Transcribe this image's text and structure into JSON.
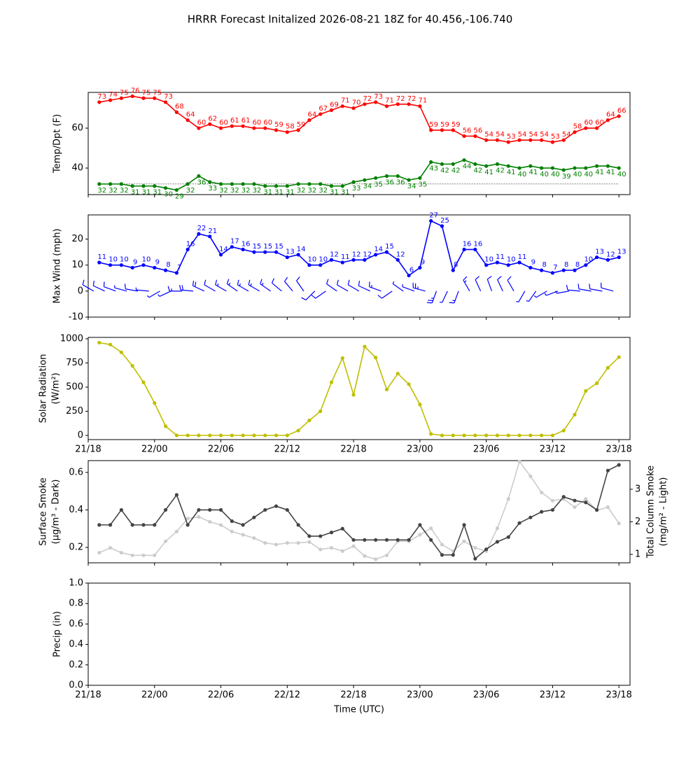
{
  "title": "HRRR Forecast Initalized 2026-08-21 18Z for 40.456,-106.740",
  "chart_data": [
    {
      "type": "line",
      "ylabel": [
        "Temp/Dpt (F)"
      ],
      "x": [
        1,
        2,
        3,
        4,
        5,
        6,
        7,
        8,
        9,
        10,
        11,
        12,
        13,
        14,
        15,
        16,
        17,
        18,
        19,
        20,
        21,
        22,
        23,
        24,
        25,
        26,
        27,
        28,
        29,
        30,
        31,
        32,
        33,
        34,
        35,
        36,
        37,
        38,
        39,
        40,
        41,
        42,
        43,
        44,
        45,
        46,
        47,
        48
      ],
      "xlim": [
        0,
        49
      ],
      "xticks": [
        {
          "value": 0,
          "label": "21/18"
        },
        {
          "value": 6,
          "label": "22/00"
        },
        {
          "value": 12,
          "label": "22/06"
        },
        {
          "value": 18,
          "label": "22/12"
        },
        {
          "value": 24,
          "label": "22/18"
        },
        {
          "value": 30,
          "label": "23/00"
        },
        {
          "value": 36,
          "label": "23/06"
        },
        {
          "value": 42,
          "label": "23/12"
        },
        {
          "value": 48,
          "label": "23/18"
        }
      ],
      "xtick_labels": false,
      "ylim": [
        26.7,
        77.9
      ],
      "yticks": [
        40,
        60
      ],
      "reference_line": 32,
      "series": [
        {
          "name": "Temperature",
          "color": "#ff0000",
          "data_labels": "above",
          "values": [
            73,
            74,
            75,
            76,
            75,
            75,
            73,
            68,
            64,
            60,
            62,
            60,
            61,
            61,
            60,
            60,
            59,
            58,
            59,
            64,
            67,
            69,
            71,
            70,
            72,
            73,
            71,
            72,
            72,
            71,
            59,
            59,
            59,
            56,
            56,
            54,
            54,
            53,
            54,
            54,
            54,
            53,
            54,
            58,
            60,
            60,
            64,
            66
          ]
        },
        {
          "name": "Dew Point",
          "color": "#008000",
          "data_labels": "below",
          "values": [
            32,
            32,
            32,
            31,
            31,
            31,
            30,
            29,
            32,
            36,
            33,
            32,
            32,
            32,
            32,
            31,
            31,
            31,
            32,
            32,
            32,
            31,
            31,
            33,
            34,
            35,
            36,
            36,
            34,
            35,
            43,
            42,
            42,
            44,
            42,
            41,
            42,
            41,
            40,
            41,
            40,
            40,
            39,
            40,
            40,
            41,
            41,
            40
          ]
        }
      ]
    },
    {
      "type": "line",
      "ylabel": [
        "Max Wind (mph)"
      ],
      "x": [
        1,
        2,
        3,
        4,
        5,
        6,
        7,
        8,
        9,
        10,
        11,
        12,
        13,
        14,
        15,
        16,
        17,
        18,
        19,
        20,
        21,
        22,
        23,
        24,
        25,
        26,
        27,
        28,
        29,
        30,
        31,
        32,
        33,
        34,
        35,
        36,
        37,
        38,
        39,
        40,
        41,
        42,
        43,
        44,
        45,
        46,
        47,
        48
      ],
      "xlim": [
        0,
        49
      ],
      "xticks": [
        {
          "value": 0,
          "label": "21/18"
        },
        {
          "value": 6,
          "label": "22/00"
        },
        {
          "value": 12,
          "label": "22/06"
        },
        {
          "value": 18,
          "label": "22/12"
        },
        {
          "value": 24,
          "label": "22/18"
        },
        {
          "value": 30,
          "label": "23/00"
        },
        {
          "value": 36,
          "label": "23/06"
        },
        {
          "value": 42,
          "label": "23/12"
        },
        {
          "value": 48,
          "label": "23/18"
        }
      ],
      "xtick_labels": false,
      "ylim": [
        -10,
        29.3
      ],
      "yticks": [
        -10,
        0,
        10,
        20
      ],
      "series": [
        {
          "name": "Max Wind",
          "color": "#0000ff",
          "data_labels": "above",
          "values": [
            11,
            10,
            10,
            9,
            10,
            9,
            8,
            7,
            16,
            22,
            21,
            14,
            17,
            16,
            15,
            15,
            15,
            13,
            14,
            10,
            10,
            12,
            11,
            12,
            12,
            14,
            15,
            12,
            6,
            9,
            27,
            25,
            8,
            16,
            16,
            10,
            11,
            10,
            11,
            9,
            8,
            7,
            8,
            8,
            10,
            13,
            12,
            13
          ]
        }
      ],
      "wind_dir": [
        300,
        295,
        290,
        285,
        280,
        275,
        240,
        245,
        270,
        275,
        295,
        300,
        300,
        305,
        300,
        300,
        305,
        310,
        320,
        325,
        225,
        235,
        305,
        300,
        300,
        295,
        290,
        235,
        305,
        290,
        285,
        200,
        205,
        200,
        330,
        335,
        340,
        335,
        330,
        210,
        215,
        240,
        250,
        260,
        275,
        280,
        280,
        285
      ]
    },
    {
      "type": "line",
      "ylabel": [
        "Solar Radiation",
        "(W/m²)"
      ],
      "x": [
        1,
        2,
        3,
        4,
        5,
        6,
        7,
        8,
        9,
        10,
        11,
        12,
        13,
        14,
        15,
        16,
        17,
        18,
        19,
        20,
        21,
        22,
        23,
        24,
        25,
        26,
        27,
        28,
        29,
        30,
        31,
        32,
        33,
        34,
        35,
        36,
        37,
        38,
        39,
        40,
        41,
        42,
        43,
        44,
        45,
        46,
        47,
        48
      ],
      "xlim": [
        0,
        49
      ],
      "xticks": [
        {
          "value": 0,
          "label": "21/18"
        },
        {
          "value": 6,
          "label": "22/00"
        },
        {
          "value": 12,
          "label": "22/06"
        },
        {
          "value": 18,
          "label": "22/12"
        },
        {
          "value": 24,
          "label": "22/18"
        },
        {
          "value": 30,
          "label": "23/00"
        },
        {
          "value": 36,
          "label": "23/06"
        },
        {
          "value": 42,
          "label": "23/12"
        },
        {
          "value": 48,
          "label": "23/18"
        }
      ],
      "xtick_labels": true,
      "ylim": [
        -43.5,
        1014.5
      ],
      "yticks": [
        0,
        250,
        500,
        750,
        1000
      ],
      "series": [
        {
          "name": "Solar Radiation",
          "color": "#bfbf00",
          "values": [
            960,
            940,
            860,
            720,
            550,
            335,
            95,
            0,
            0,
            0,
            0,
            0,
            0,
            0,
            0,
            0,
            0,
            0,
            50,
            155,
            250,
            550,
            800,
            420,
            920,
            805,
            475,
            640,
            530,
            320,
            15,
            0,
            0,
            0,
            0,
            0,
            0,
            0,
            0,
            0,
            0,
            0,
            50,
            215,
            460,
            540,
            700,
            810
          ]
        }
      ]
    },
    {
      "type": "line",
      "ylabel": [
        "Surface Smoke",
        "(μg/m³ - Dark)"
      ],
      "y2label": [
        "Total Column Smoke",
        "(mg/m² - Light)"
      ],
      "x": [
        1,
        2,
        3,
        4,
        5,
        6,
        7,
        8,
        9,
        10,
        11,
        12,
        13,
        14,
        15,
        16,
        17,
        18,
        19,
        20,
        21,
        22,
        23,
        24,
        25,
        26,
        27,
        28,
        29,
        30,
        31,
        32,
        33,
        34,
        35,
        36,
        37,
        38,
        39,
        40,
        41,
        42,
        43,
        44,
        45,
        46,
        47,
        48
      ],
      "xlim": [
        0,
        49
      ],
      "xticks": [
        {
          "value": 0,
          "label": "21/18"
        },
        {
          "value": 6,
          "label": "22/00"
        },
        {
          "value": 12,
          "label": "22/06"
        },
        {
          "value": 18,
          "label": "22/12"
        },
        {
          "value": 24,
          "label": "22/18"
        },
        {
          "value": 30,
          "label": "23/00"
        },
        {
          "value": 36,
          "label": "23/06"
        },
        {
          "value": 42,
          "label": "23/12"
        },
        {
          "value": 48,
          "label": "23/18"
        }
      ],
      "xtick_labels": false,
      "ylim": [
        0.118,
        0.663
      ],
      "yticks": [
        0.2,
        0.4,
        0.6
      ],
      "y2lim": [
        0.74,
        3.88
      ],
      "y2ticks": [
        1,
        2,
        3
      ],
      "series": [
        {
          "name": "Total Column Smoke",
          "color": "#cccccc",
          "axis": "y2",
          "values": [
            1.05,
            1.2,
            1.05,
            0.97,
            0.97,
            0.97,
            1.4,
            1.7,
            2.1,
            2.15,
            2.0,
            1.9,
            1.7,
            1.6,
            1.5,
            1.35,
            1.3,
            1.35,
            1.35,
            1.38,
            1.15,
            1.2,
            1.1,
            1.25,
            0.95,
            0.85,
            0.97,
            1.4,
            1.4,
            1.6,
            1.8,
            1.3,
            1.1,
            1.4,
            1.2,
            1.1,
            1.8,
            2.7,
            3.85,
            3.4,
            2.9,
            2.65,
            2.7,
            2.45,
            2.7,
            2.35,
            2.45,
            1.95
          ]
        },
        {
          "name": "Surface Smoke",
          "color": "#444444",
          "values": [
            0.32,
            0.32,
            0.4,
            0.32,
            0.32,
            0.32,
            0.4,
            0.48,
            0.32,
            0.4,
            0.4,
            0.4,
            0.34,
            0.32,
            0.36,
            0.4,
            0.42,
            0.4,
            0.32,
            0.26,
            0.26,
            0.28,
            0.3,
            0.24,
            0.24,
            0.24,
            0.24,
            0.24,
            0.24,
            0.32,
            0.24,
            0.16,
            0.16,
            0.32,
            0.14,
            0.19,
            0.23,
            0.255,
            0.33,
            0.36,
            0.39,
            0.4,
            0.47,
            0.45,
            0.44,
            0.4,
            0.61,
            0.64
          ]
        }
      ]
    },
    {
      "type": "line",
      "ylabel": [
        "Precip (in)"
      ],
      "xlabel": "Time (UTC)",
      "xlim": [
        0,
        49
      ],
      "xticks": [
        {
          "value": 0,
          "label": "21/18"
        },
        {
          "value": 6,
          "label": "22/00"
        },
        {
          "value": 12,
          "label": "22/06"
        },
        {
          "value": 18,
          "label": "22/12"
        },
        {
          "value": 24,
          "label": "22/18"
        },
        {
          "value": 30,
          "label": "23/00"
        },
        {
          "value": 36,
          "label": "23/06"
        },
        {
          "value": 42,
          "label": "23/12"
        },
        {
          "value": 48,
          "label": "23/18"
        }
      ],
      "xtick_labels": true,
      "ylim": [
        0,
        1
      ],
      "yticks": [
        {
          "value": 0,
          "label": "0.0"
        },
        0.2,
        0.4,
        0.6,
        0.8,
        {
          "value": 1,
          "label": "1.0"
        }
      ],
      "series": []
    }
  ]
}
